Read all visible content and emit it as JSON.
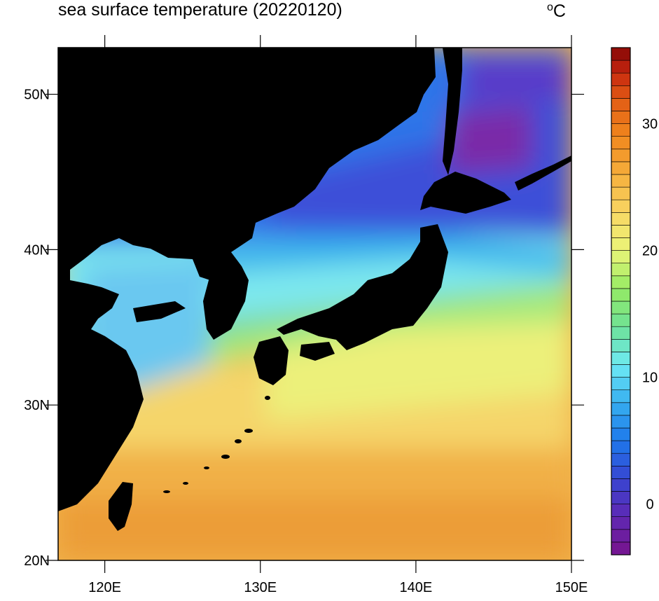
{
  "title": "sea surface temperature (20220120)",
  "unit_degree": "o",
  "unit_letter": "C",
  "lon_ticks": [
    {
      "value": 120,
      "label": "120E"
    },
    {
      "value": 130,
      "label": "130E"
    },
    {
      "value": 140,
      "label": "140E"
    },
    {
      "value": 150,
      "label": "150E"
    }
  ],
  "lat_ticks": [
    {
      "value": 20,
      "label": "20N"
    },
    {
      "value": 30,
      "label": "30N"
    },
    {
      "value": 40,
      "label": "40N"
    },
    {
      "value": 50,
      "label": "50N"
    }
  ],
  "lon_range": [
    117,
    150
  ],
  "lat_range": [
    20,
    53
  ],
  "colorbar": {
    "range": [
      -4,
      36
    ],
    "ticks": [
      {
        "value": 0,
        "label": "0"
      },
      {
        "value": 10,
        "label": "10"
      },
      {
        "value": 20,
        "label": "20"
      },
      {
        "value": 30,
        "label": "30"
      }
    ]
  },
  "colors": {
    "land": "#000000",
    "frame": "#000000"
  }
}
